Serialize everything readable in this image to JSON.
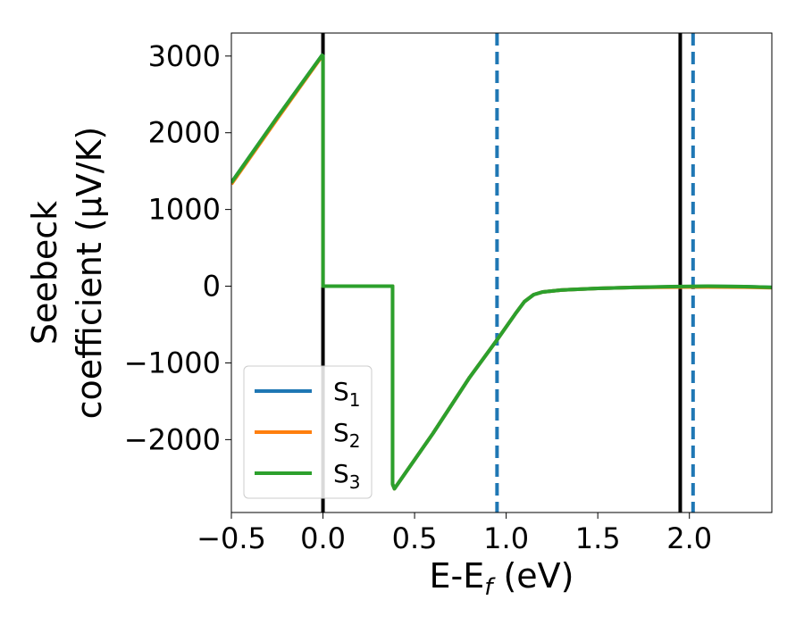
{
  "chart_data": {
    "type": "line",
    "xlabel": "E-E",
    "xlabel_sub": "f",
    "xlabel_unit": " (eV)",
    "ylabel_line1": "Seebeck",
    "ylabel_line2": "coefficient  (μV/K)",
    "xlim": [
      -0.5,
      2.45
    ],
    "ylim": [
      -2950,
      3300
    ],
    "x_ticks": [
      -0.5,
      0.0,
      0.5,
      1.0,
      1.5,
      2.0
    ],
    "x_tick_labels": [
      "−0.5",
      "0.0",
      "0.5",
      "1.0",
      "1.5",
      "2.0"
    ],
    "y_ticks": [
      3000,
      2000,
      1000,
      0,
      -1000,
      -2000
    ],
    "y_tick_labels": [
      "3000",
      "2000",
      "1000",
      "0",
      "−1000",
      "−2000"
    ],
    "grid": false,
    "legend_position": "lower-left",
    "series": [
      {
        "name": "S",
        "sub": "1",
        "color": "#1f77b4",
        "x": [
          -0.5,
          -0.25,
          -0.005,
          0.0,
          0.0,
          0.38,
          0.38,
          0.39,
          0.6,
          0.8,
          0.95,
          1.05,
          1.1,
          1.15,
          1.2,
          1.3,
          1.5,
          1.7,
          1.9,
          2.1,
          2.3,
          2.45
        ],
        "y": [
          1350,
          2200,
          3010,
          3000,
          0,
          0,
          -2580,
          -2640,
          -1920,
          -1190,
          -700,
          -360,
          -200,
          -110,
          -75,
          -50,
          -28,
          -15,
          -8,
          -3,
          -5,
          -15
        ]
      },
      {
        "name": "S",
        "sub": "2",
        "color": "#ff7f0e",
        "x": [
          -0.5,
          -0.25,
          -0.005,
          0.0,
          0.0,
          0.38,
          0.38,
          0.39,
          0.6,
          0.8,
          0.95,
          1.05,
          1.1,
          1.15,
          1.2,
          1.3,
          1.5,
          1.7,
          1.9,
          2.1,
          2.3,
          2.45
        ],
        "y": [
          1330,
          2180,
          3000,
          2990,
          0,
          0,
          -2580,
          -2640,
          -1920,
          -1190,
          -700,
          -360,
          -200,
          -110,
          -75,
          -50,
          -28,
          -15,
          -12,
          -10,
          -12,
          -20
        ]
      },
      {
        "name": "S",
        "sub": "3",
        "color": "#2ca02c",
        "x": [
          -0.5,
          -0.25,
          -0.005,
          0.0,
          0.0,
          0.38,
          0.38,
          0.39,
          0.6,
          0.8,
          0.95,
          1.05,
          1.1,
          1.15,
          1.2,
          1.3,
          1.5,
          1.7,
          1.9,
          2.1,
          2.3,
          2.45
        ],
        "y": [
          1350,
          2200,
          3010,
          3000,
          0,
          0,
          -2580,
          -2640,
          -1920,
          -1190,
          -700,
          -360,
          -200,
          -110,
          -75,
          -50,
          -28,
          -15,
          -5,
          0,
          -5,
          -15
        ]
      }
    ],
    "vertical_lines": [
      {
        "x": 0.0,
        "style": "solid",
        "color": "#000000"
      },
      {
        "x": 1.95,
        "style": "solid",
        "color": "#000000"
      },
      {
        "x": 0.95,
        "style": "dashed",
        "color": "#1f77b4"
      },
      {
        "x": 2.02,
        "style": "dashed",
        "color": "#1f77b4"
      }
    ]
  }
}
